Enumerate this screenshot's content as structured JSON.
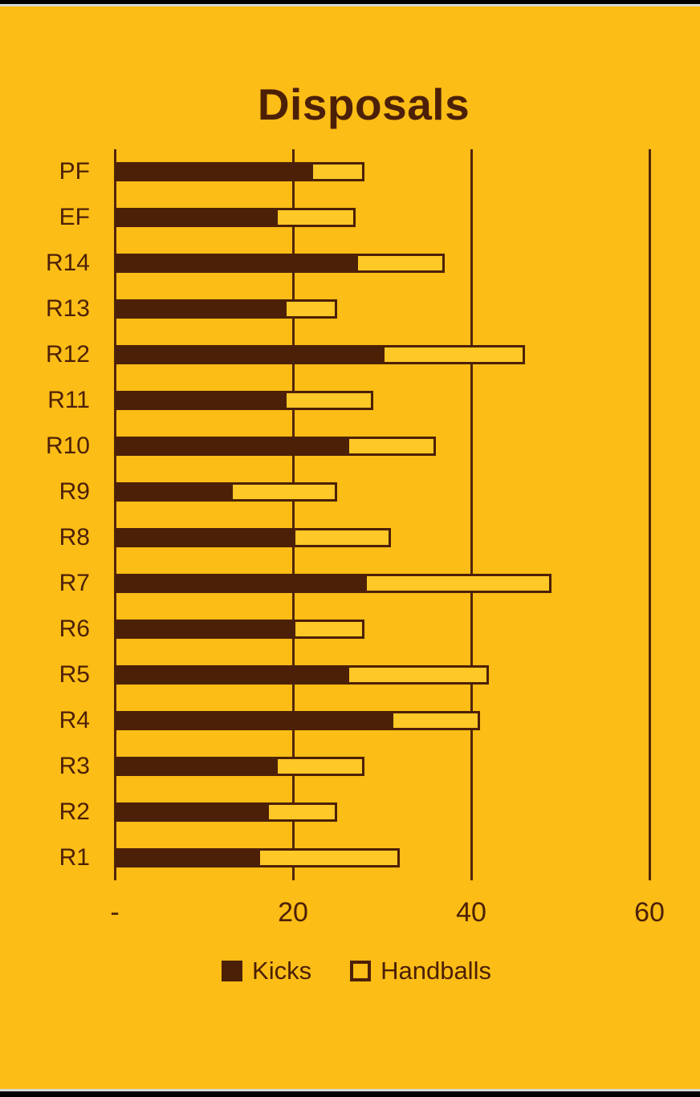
{
  "colors": {
    "background": "#FBBD16",
    "brown": "#4C2007",
    "handball_fill": "#FEC827",
    "frame_black": "#000000",
    "frame_gray": "#D8D8D8"
  },
  "chart_data": {
    "type": "bar",
    "orientation": "horizontal",
    "stacked": true,
    "title": "Disposals",
    "categories_top_to_bottom": [
      "PF",
      "EF",
      "R14",
      "R13",
      "R12",
      "R11",
      "R10",
      "R9",
      "R8",
      "R7",
      "R6",
      "R5",
      "R4",
      "R3",
      "R2",
      "R1"
    ],
    "series": [
      {
        "name": "Kicks",
        "values": [
          22,
          18,
          27,
          19,
          30,
          19,
          26,
          13,
          20,
          28,
          20,
          26,
          31,
          18,
          17,
          16
        ]
      },
      {
        "name": "Handballs",
        "values": [
          6,
          9,
          10,
          6,
          16,
          10,
          10,
          12,
          11,
          21,
          8,
          16,
          10,
          10,
          8,
          16
        ]
      }
    ],
    "totals": [
      28,
      27,
      37,
      25,
      46,
      29,
      36,
      25,
      31,
      49,
      28,
      42,
      41,
      28,
      25,
      32
    ],
    "x_axis": {
      "tick_labels": [
        "-",
        "20",
        "40",
        "60"
      ],
      "tick_values": [
        0,
        20,
        40,
        60
      ],
      "min": 0,
      "max": 60
    },
    "legend": {
      "position": "bottom",
      "entries": [
        {
          "label": "Kicks",
          "swatch": "filled-square"
        },
        {
          "label": "Handballs",
          "swatch": "outline-square"
        }
      ]
    },
    "gridlines": true
  }
}
